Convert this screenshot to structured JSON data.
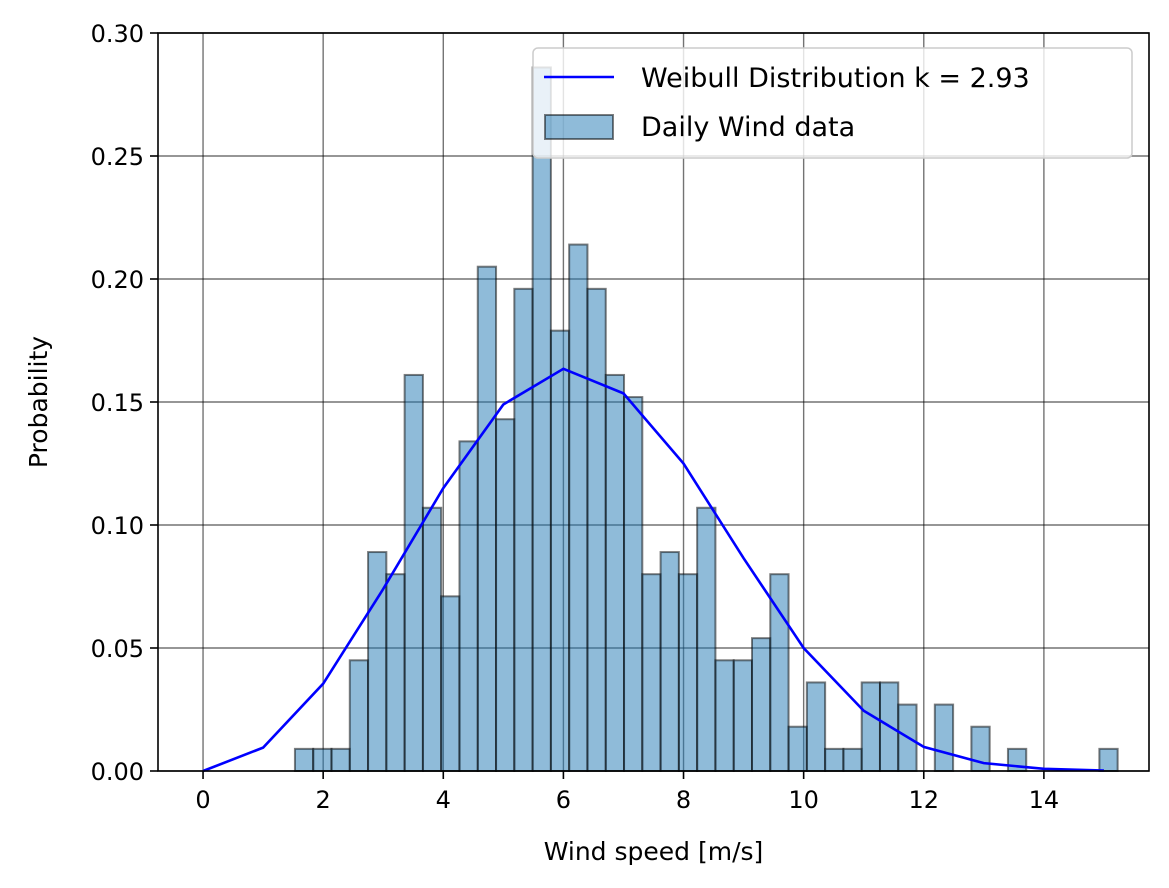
{
  "chart_data": {
    "type": "bar",
    "xlabel": "Wind speed [m/s]",
    "ylabel": "Probability",
    "xlim": [
      -0.75,
      15.75
    ],
    "ylim": [
      0,
      0.3
    ],
    "xticks": [
      0,
      2,
      4,
      6,
      8,
      10,
      12,
      14
    ],
    "yticks": [
      0.0,
      0.05,
      0.1,
      0.15,
      0.2,
      0.25,
      0.3
    ],
    "xtick_labels": [
      "0",
      "2",
      "4",
      "6",
      "8",
      "10",
      "12",
      "14"
    ],
    "ytick_labels": [
      "0.00",
      "0.05",
      "0.10",
      "0.15",
      "0.20",
      "0.25",
      "0.30"
    ],
    "grid": true,
    "legend_placement": "upper right",
    "histogram": {
      "name": "Daily Wind data",
      "color": "#1f77b4",
      "alpha": 0.5,
      "edge_color": "#000000",
      "bin_start": 1.53,
      "bin_width": 0.3044,
      "values": [
        0.009,
        0.009,
        0.009,
        0.045,
        0.089,
        0.08,
        0.161,
        0.107,
        0.071,
        0.134,
        0.205,
        0.143,
        0.196,
        0.286,
        0.179,
        0.214,
        0.196,
        0.161,
        0.152,
        0.08,
        0.089,
        0.08,
        0.107,
        0.045,
        0.045,
        0.054,
        0.08,
        0.018,
        0.036,
        0.009,
        0.009,
        0.036,
        0.036,
        0.027,
        0.0,
        0.027,
        0.0,
        0.018,
        0.0,
        0.009,
        0.0,
        0.0,
        0.0,
        0.0,
        0.009
      ]
    },
    "series": [
      {
        "name": "Weibull Distribution k = 2.93",
        "color": "#0000ff",
        "x": [
          0,
          1,
          2,
          3,
          4,
          5,
          6,
          7,
          8,
          9,
          10,
          11,
          12,
          13,
          14,
          15
        ],
        "values": [
          0.0,
          0.0095,
          0.0355,
          0.074,
          0.115,
          0.149,
          0.1635,
          0.1535,
          0.125,
          0.0865,
          0.05,
          0.0245,
          0.0098,
          0.0032,
          0.0009,
          0.0002
        ]
      }
    ]
  }
}
